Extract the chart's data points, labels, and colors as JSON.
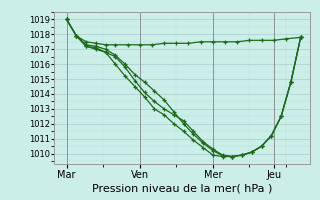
{
  "bg_color": "#cceee8",
  "line_color": "#1a6b1a",
  "ylim": [
    1009.3,
    1019.5
  ],
  "yticks": [
    1010,
    1011,
    1012,
    1013,
    1014,
    1015,
    1016,
    1017,
    1018,
    1019
  ],
  "xtick_labels": [
    "Mar",
    "Ven",
    "Mer",
    "Jeu"
  ],
  "xtick_positions": [
    0.5,
    3.5,
    6.5,
    9.0
  ],
  "xlabel": "Pression niveau de la mer( hPa )",
  "xlim": [
    0.0,
    10.5
  ],
  "line1_x": [
    0.5,
    0.9,
    1.3,
    1.7,
    2.1,
    2.5,
    2.9,
    3.3,
    3.7,
    4.1,
    4.5,
    4.9,
    5.3,
    5.7,
    6.1,
    6.5,
    6.9,
    7.3,
    7.7,
    8.1,
    8.5,
    8.9,
    9.3,
    9.7,
    10.1
  ],
  "line1_y": [
    1019.0,
    1017.9,
    1017.2,
    1017.0,
    1016.8,
    1016.5,
    1015.8,
    1014.9,
    1014.1,
    1013.5,
    1013.0,
    1012.6,
    1012.2,
    1011.5,
    1010.8,
    1010.3,
    1009.9,
    1009.8,
    1009.9,
    1010.1,
    1010.5,
    1011.2,
    1012.5,
    1014.8,
    1017.8
  ],
  "line2_x": [
    0.5,
    0.9,
    1.3,
    1.7,
    2.1,
    2.5,
    2.9,
    3.3,
    3.7,
    4.1,
    4.5,
    4.9,
    5.3,
    5.7,
    6.1,
    6.5,
    6.9,
    7.3,
    7.7,
    8.1,
    8.5,
    8.9,
    9.3,
    9.7,
    10.1
  ],
  "line2_y": [
    1019.0,
    1017.9,
    1017.2,
    1017.1,
    1016.8,
    1016.0,
    1015.2,
    1014.5,
    1013.8,
    1013.0,
    1012.6,
    1012.0,
    1011.5,
    1010.9,
    1010.4,
    1009.9,
    1009.8,
    1009.8,
    1009.9,
    1010.1,
    1010.5,
    1011.2,
    1012.5,
    1014.8,
    1017.8
  ],
  "line3_x": [
    0.5,
    0.9,
    1.3,
    1.7,
    2.1,
    2.5,
    2.9,
    3.3,
    3.7,
    4.1,
    4.5,
    4.9,
    5.3,
    5.7,
    6.1,
    6.5,
    6.9,
    7.3,
    7.7,
    8.1,
    8.5,
    8.9,
    9.3,
    9.7,
    10.1
  ],
  "line3_y": [
    1019.0,
    1017.9,
    1017.3,
    1017.2,
    1017.0,
    1016.6,
    1016.0,
    1015.3,
    1014.8,
    1014.2,
    1013.6,
    1012.8,
    1012.0,
    1011.3,
    1010.7,
    1010.2,
    1009.85,
    1009.8,
    1009.9,
    1010.1,
    1010.5,
    1011.2,
    1012.5,
    1014.8,
    1017.8
  ],
  "line4_x": [
    0.5,
    0.9,
    1.3,
    1.7,
    2.1,
    2.5,
    3.0,
    3.5,
    4.0,
    4.5,
    5.0,
    5.5,
    6.0,
    6.5,
    7.0,
    7.5,
    8.0,
    8.5,
    9.0,
    9.5,
    10.1
  ],
  "line4_y": [
    1019.0,
    1017.9,
    1017.5,
    1017.4,
    1017.3,
    1017.3,
    1017.3,
    1017.3,
    1017.3,
    1017.4,
    1017.4,
    1017.4,
    1017.5,
    1017.5,
    1017.5,
    1017.5,
    1017.6,
    1017.6,
    1017.6,
    1017.7,
    1017.8
  ],
  "vline_positions": [
    0.5,
    3.5,
    6.5,
    9.0
  ],
  "ytick_fontsize": 6,
  "xtick_fontsize": 7,
  "xlabel_fontsize": 8
}
